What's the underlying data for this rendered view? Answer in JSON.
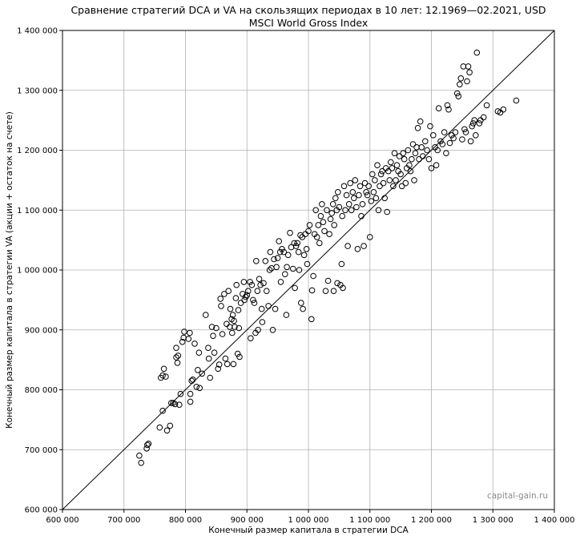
{
  "chart_data": {
    "type": "scatter",
    "title": "Сравнение стратегий DCA и VA на скользящих периодах в 10 лет: 12.1969—02.2021, USD",
    "subtitle": "MSCI World Gross Index",
    "xlabel": "Конечный размер капитала в стратегии DCA",
    "ylabel": "Конечный размер капитала в стратегии VA (акции + остаток на счете)",
    "xlim": [
      600000,
      1400000
    ],
    "ylim": [
      600000,
      1400000
    ],
    "xticks": [
      600000,
      700000,
      800000,
      900000,
      1000000,
      1100000,
      1200000,
      1300000,
      1400000
    ],
    "yticks": [
      600000,
      700000,
      800000,
      900000,
      1000000,
      1100000,
      1200000,
      1300000,
      1400000
    ],
    "xtick_labels": [
      "600 000",
      "700 000",
      "800 000",
      "900 000",
      "1 000 000",
      "1 100 000",
      "1 200 000",
      "1 300 000",
      "1 400 000"
    ],
    "ytick_labels": [
      "600 000",
      "700 000",
      "800 000",
      "900 000",
      "1 000 000",
      "1 100 000",
      "1 200 000",
      "1 300 000",
      "1 400 000"
    ],
    "grid": true,
    "reference_line": "y = x",
    "marker": "open-circle",
    "watermark": "capital-gain.ru",
    "points": [
      [
        725000,
        690000
      ],
      [
        728000,
        678000
      ],
      [
        737000,
        702000
      ],
      [
        738000,
        708000
      ],
      [
        740000,
        710000
      ],
      [
        758000,
        737000
      ],
      [
        760000,
        820000
      ],
      [
        763000,
        824000
      ],
      [
        763000,
        765000
      ],
      [
        765000,
        835000
      ],
      [
        768000,
        822000
      ],
      [
        770000,
        732000
      ],
      [
        775000,
        740000
      ],
      [
        777000,
        778000
      ],
      [
        780000,
        778000
      ],
      [
        783000,
        776000
      ],
      [
        785000,
        870000
      ],
      [
        785000,
        854000
      ],
      [
        787000,
        845000
      ],
      [
        788000,
        857000
      ],
      [
        790000,
        775000
      ],
      [
        792000,
        793000
      ],
      [
        795000,
        880000
      ],
      [
        797000,
        887000
      ],
      [
        798000,
        897000
      ],
      [
        805000,
        885000
      ],
      [
        807000,
        895000
      ],
      [
        808000,
        793000
      ],
      [
        808000,
        780000
      ],
      [
        810000,
        815000
      ],
      [
        812000,
        817000
      ],
      [
        815000,
        877000
      ],
      [
        818000,
        805000
      ],
      [
        820000,
        833000
      ],
      [
        822000,
        862000
      ],
      [
        823000,
        803000
      ],
      [
        827000,
        827000
      ],
      [
        833000,
        925000
      ],
      [
        837000,
        870000
      ],
      [
        838000,
        852000
      ],
      [
        840000,
        820000
      ],
      [
        843000,
        905000
      ],
      [
        845000,
        890000
      ],
      [
        847000,
        862000
      ],
      [
        850000,
        903000
      ],
      [
        853000,
        835000
      ],
      [
        855000,
        842000
      ],
      [
        857000,
        952000
      ],
      [
        858000,
        940000
      ],
      [
        860000,
        893000
      ],
      [
        863000,
        960000
      ],
      [
        865000,
        852000
      ],
      [
        867000,
        910000
      ],
      [
        868000,
        843000
      ],
      [
        870000,
        965000
      ],
      [
        872000,
        905000
      ],
      [
        873000,
        935000
      ],
      [
        875000,
        918000
      ],
      [
        876000,
        895000
      ],
      [
        877000,
        925000
      ],
      [
        878000,
        843000
      ],
      [
        879000,
        915000
      ],
      [
        880000,
        905000
      ],
      [
        882000,
        953000
      ],
      [
        883000,
        975000
      ],
      [
        885000,
        860000
      ],
      [
        886000,
        933000
      ],
      [
        887000,
        903000
      ],
      [
        888000,
        855000
      ],
      [
        890000,
        945000
      ],
      [
        893000,
        960000
      ],
      [
        895000,
        980000
      ],
      [
        896000,
        950000
      ],
      [
        898000,
        955000
      ],
      [
        900000,
        958000
      ],
      [
        902000,
        965000
      ],
      [
        905000,
        980000
      ],
      [
        906000,
        886000
      ],
      [
        908000,
        975000
      ],
      [
        910000,
        950000
      ],
      [
        912000,
        945000
      ],
      [
        914000,
        895000
      ],
      [
        915000,
        1015000
      ],
      [
        917000,
        965000
      ],
      [
        918000,
        900000
      ],
      [
        920000,
        985000
      ],
      [
        922000,
        975000
      ],
      [
        924000,
        935000
      ],
      [
        925000,
        913000
      ],
      [
        927000,
        978000
      ],
      [
        930000,
        1015000
      ],
      [
        932000,
        965000
      ],
      [
        935000,
        940000
      ],
      [
        937000,
        1000000
      ],
      [
        938000,
        1030000
      ],
      [
        940000,
        1003000
      ],
      [
        942000,
        900000
      ],
      [
        944000,
        1018000
      ],
      [
        946000,
        935000
      ],
      [
        948000,
        1005000
      ],
      [
        950000,
        1020000
      ],
      [
        952000,
        1048000
      ],
      [
        954000,
        1030000
      ],
      [
        955000,
        980000
      ],
      [
        957000,
        1035000
      ],
      [
        960000,
        1030000
      ],
      [
        962000,
        993000
      ],
      [
        964000,
        925000
      ],
      [
        965000,
        1005000
      ],
      [
        967000,
        1025000
      ],
      [
        970000,
        1062000
      ],
      [
        972000,
        1038000
      ],
      [
        975000,
        1002000
      ],
      [
        977000,
        1045000
      ],
      [
        978000,
        970000
      ],
      [
        980000,
        1040000
      ],
      [
        982000,
        1045000
      ],
      [
        984000,
        1030000
      ],
      [
        985000,
        1000000
      ],
      [
        987000,
        1058000
      ],
      [
        988000,
        945000
      ],
      [
        990000,
        1055000
      ],
      [
        991000,
        935000
      ],
      [
        993000,
        1025000
      ],
      [
        995000,
        1060000
      ],
      [
        997000,
        1035000
      ],
      [
        998000,
        1010000
      ],
      [
        1000000,
        1065000
      ],
      [
        1002000,
        1075000
      ],
      [
        1005000,
        918000
      ],
      [
        1006000,
        966000
      ],
      [
        1008000,
        990000
      ],
      [
        1010000,
        1060000
      ],
      [
        1012000,
        1100000
      ],
      [
        1014000,
        1055000
      ],
      [
        1016000,
        1075000
      ],
      [
        1018000,
        1045000
      ],
      [
        1020000,
        1090000
      ],
      [
        1022000,
        1110000
      ],
      [
        1024000,
        1080000
      ],
      [
        1026000,
        1065000
      ],
      [
        1028000,
        965000
      ],
      [
        1030000,
        1100000
      ],
      [
        1032000,
        982000
      ],
      [
        1034000,
        1060000
      ],
      [
        1036000,
        1085000
      ],
      [
        1038000,
        1095000
      ],
      [
        1040000,
        1110000
      ],
      [
        1041000,
        965000
      ],
      [
        1042000,
        1075000
      ],
      [
        1044000,
        1120000
      ],
      [
        1046000,
        1100000
      ],
      [
        1047000,
        978000
      ],
      [
        1048000,
        1130000
      ],
      [
        1050000,
        1105000
      ],
      [
        1052000,
        975000
      ],
      [
        1054000,
        1010000
      ],
      [
        1055000,
        1090000
      ],
      [
        1056000,
        970000
      ],
      [
        1058000,
        1140000
      ],
      [
        1060000,
        1100000
      ],
      [
        1062000,
        1125000
      ],
      [
        1064000,
        1040000
      ],
      [
        1066000,
        1110000
      ],
      [
        1068000,
        1145000
      ],
      [
        1070000,
        1100000
      ],
      [
        1072000,
        1130000
      ],
      [
        1074000,
        1120000
      ],
      [
        1076000,
        1150000
      ],
      [
        1078000,
        1105000
      ],
      [
        1080000,
        1035000
      ],
      [
        1082000,
        1125000
      ],
      [
        1084000,
        1140000
      ],
      [
        1086000,
        1090000
      ],
      [
        1088000,
        1110000
      ],
      [
        1090000,
        1040000
      ],
      [
        1092000,
        1145000
      ],
      [
        1094000,
        1130000
      ],
      [
        1096000,
        1125000
      ],
      [
        1098000,
        1140000
      ],
      [
        1100000,
        1055000
      ],
      [
        1102000,
        1115000
      ],
      [
        1104000,
        1160000
      ],
      [
        1106000,
        1130000
      ],
      [
        1108000,
        1150000
      ],
      [
        1110000,
        1120000
      ],
      [
        1112000,
        1175000
      ],
      [
        1114000,
        1100000
      ],
      [
        1116000,
        1140000
      ],
      [
        1118000,
        1160000
      ],
      [
        1120000,
        1165000
      ],
      [
        1122000,
        1145000
      ],
      [
        1124000,
        1120000
      ],
      [
        1126000,
        1170000
      ],
      [
        1128000,
        1097000
      ],
      [
        1130000,
        1165000
      ],
      [
        1132000,
        1150000
      ],
      [
        1134000,
        1180000
      ],
      [
        1136000,
        1170000
      ],
      [
        1138000,
        1140000
      ],
      [
        1140000,
        1195000
      ],
      [
        1142000,
        1150000
      ],
      [
        1144000,
        1175000
      ],
      [
        1146000,
        1165000
      ],
      [
        1148000,
        1190000
      ],
      [
        1150000,
        1160000
      ],
      [
        1152000,
        1140000
      ],
      [
        1154000,
        1195000
      ],
      [
        1156000,
        1185000
      ],
      [
        1158000,
        1145000
      ],
      [
        1160000,
        1170000
      ],
      [
        1162000,
        1200000
      ],
      [
        1164000,
        1175000
      ],
      [
        1166000,
        1165000
      ],
      [
        1168000,
        1185000
      ],
      [
        1170000,
        1210000
      ],
      [
        1172000,
        1150000
      ],
      [
        1174000,
        1195000
      ],
      [
        1176000,
        1205000
      ],
      [
        1178000,
        1237000
      ],
      [
        1180000,
        1185000
      ],
      [
        1182000,
        1248000
      ],
      [
        1184000,
        1205000
      ],
      [
        1186000,
        1190000
      ],
      [
        1190000,
        1215000
      ],
      [
        1193000,
        1200000
      ],
      [
        1196000,
        1185000
      ],
      [
        1198000,
        1240000
      ],
      [
        1200000,
        1170000
      ],
      [
        1203000,
        1225000
      ],
      [
        1206000,
        1205000
      ],
      [
        1208000,
        1175000
      ],
      [
        1210000,
        1200000
      ],
      [
        1212000,
        1270000
      ],
      [
        1215000,
        1215000
      ],
      [
        1218000,
        1210000
      ],
      [
        1221000,
        1230000
      ],
      [
        1224000,
        1195000
      ],
      [
        1226000,
        1275000
      ],
      [
        1228000,
        1268000
      ],
      [
        1230000,
        1212000
      ],
      [
        1233000,
        1225000
      ],
      [
        1236000,
        1220000
      ],
      [
        1239000,
        1230000
      ],
      [
        1242000,
        1295000
      ],
      [
        1244000,
        1290000
      ],
      [
        1246000,
        1310000
      ],
      [
        1248000,
        1320000
      ],
      [
        1250000,
        1218000
      ],
      [
        1252000,
        1340000
      ],
      [
        1254000,
        1235000
      ],
      [
        1256000,
        1230000
      ],
      [
        1258000,
        1315000
      ],
      [
        1260000,
        1340000
      ],
      [
        1262000,
        1330000
      ],
      [
        1264000,
        1215000
      ],
      [
        1266000,
        1240000
      ],
      [
        1268000,
        1245000
      ],
      [
        1270000,
        1250000
      ],
      [
        1272000,
        1225000
      ],
      [
        1274000,
        1363000
      ],
      [
        1278000,
        1245000
      ],
      [
        1280000,
        1250000
      ],
      [
        1285000,
        1255000
      ],
      [
        1290000,
        1275000
      ],
      [
        1308000,
        1265000
      ],
      [
        1312000,
        1263000
      ],
      [
        1317000,
        1268000
      ],
      [
        1338000,
        1283000
      ]
    ]
  }
}
